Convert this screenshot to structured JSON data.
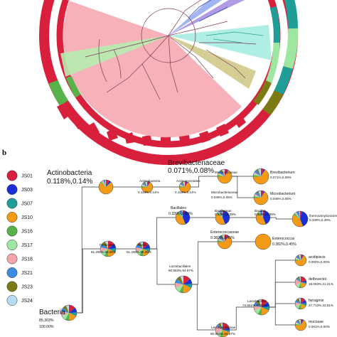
{
  "panel_label": "b",
  "legend": [
    {
      "label": "JS01",
      "color": "#d81f3c"
    },
    {
      "label": "JS03",
      "color": "#1a2fd6"
    },
    {
      "label": "JS07",
      "color": "#1f9e98"
    },
    {
      "label": "JS10",
      "color": "#f39b16"
    },
    {
      "label": "JS16",
      "color": "#58b24a"
    },
    {
      "label": "JS17",
      "color": "#9ee7a0"
    },
    {
      "label": "JS18",
      "color": "#f4a5ab"
    },
    {
      "label": "JS21",
      "color": "#3a8ce0"
    },
    {
      "label": "JS23",
      "color": "#7c7a13"
    },
    {
      "label": "JS24",
      "color": "#b7dcf5"
    }
  ],
  "nodes": {
    "bacteria": {
      "name": "Bacteria",
      "pct1": "85.303%",
      "pct2": "100.00%"
    },
    "actinobacteria": {
      "name": "Actinobacteria",
      "pct": "0.118%,0.14%"
    },
    "actinobacteria_sub": {
      "name": "Actinobacteria",
      "pct": "0.118%,0.14%"
    },
    "actinomycetales": {
      "name": "Actinomycetales",
      "pct": "0.118%,0.14%"
    },
    "micrococcineae": {
      "name": "Micrococcineae",
      "pct": "0.118%,0.14%"
    },
    "brevibacteriaceae": {
      "name": "Brevibacteriaceae",
      "pct": "0.071%,0.08%"
    },
    "brevibacterium": {
      "name": "Brevibacterium",
      "pct": "0.071%,0.08%"
    },
    "microbacteriaceae": {
      "name": "Microbacteriaceae",
      "pct": "0.046%,0.05%"
    },
    "microbacterium": {
      "name": "Microbacterium",
      "pct": "0.046%,0.05%"
    },
    "firmicutes": {
      "name": "Firmicutes",
      "pct": "81.290%,95.36%"
    },
    "bacilli": {
      "name": "Bacilli",
      "pct": "81.290%,95.36%"
    },
    "bacillales": {
      "name": "Bacillales",
      "pct": "0.339%,0.39%"
    },
    "bacillaceae": {
      "name": "Bacillaceae",
      "pct": "0.339%,0.39%"
    },
    "bacillus": {
      "name": "Bacillus",
      "pct": "0.339%,0.39%"
    },
    "thermoamylovorans": {
      "name": "thermoamylovorans",
      "pct": "0.339%,0.39%"
    },
    "enterococcaceae": {
      "name": "Enterococcaceae",
      "pct": "0.382%,0.45%"
    },
    "enterococcus": {
      "name": "Enterococcus",
      "pct": "0.382%,0.45%"
    },
    "lactobacillales": {
      "name": "Lactobacillales",
      "pct": "80.953%,94.97%"
    },
    "lactobacillaceae": {
      "name": "Lactobacillaceae",
      "pct": "80.953%,94.97%"
    },
    "lactobacillus": {
      "name": "Lactobacillus",
      "pct": "74.651%,87.57%"
    },
    "acidipiscis": {
      "name": "acidipiscis",
      "pct": "0.000%,0.00%"
    },
    "delbrueckii": {
      "name": "delbrueckii",
      "pct": "18.083%,21.21%"
    },
    "farraginis": {
      "name": "farraginis",
      "pct": "27.713%,32.51%"
    },
    "mucosae": {
      "name": "mucosae",
      "pct": "0.001%,0.00%"
    }
  }
}
